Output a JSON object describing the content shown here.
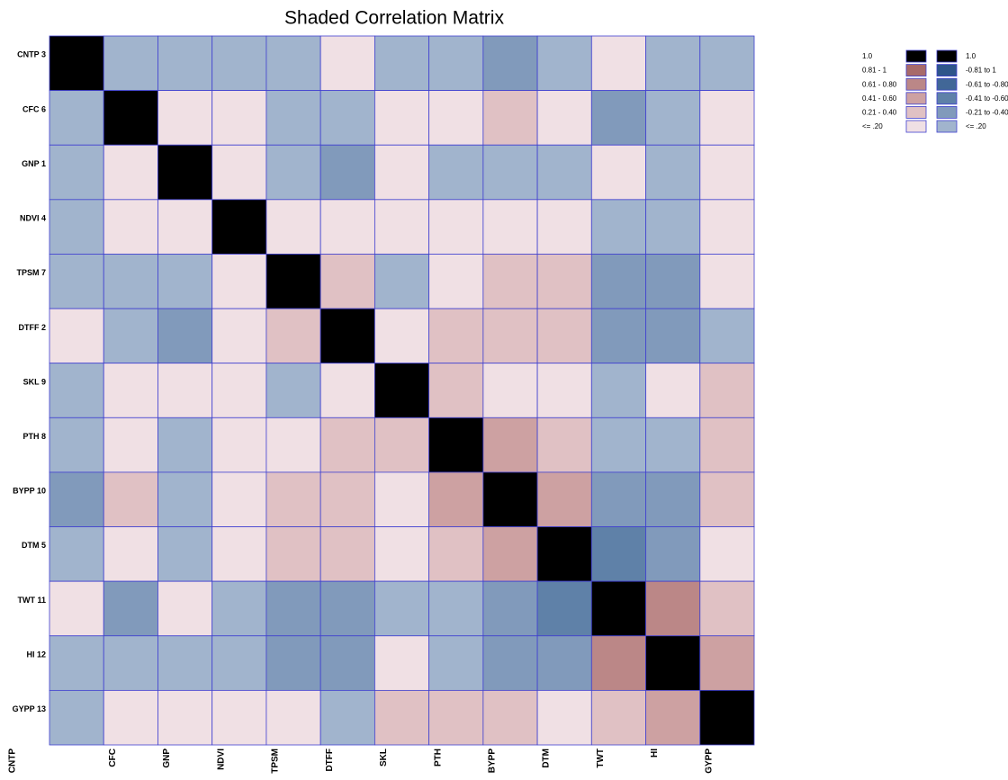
{
  "chart_data": {
    "type": "heatmap",
    "title": "Shaded Correlation Matrix",
    "rows": [
      "CNTP 3",
      "CFC 6",
      "GNP 1",
      "NDVI 4",
      "TPSM 7",
      "DTFF 2",
      "SKL 9",
      "PTH 8",
      "BYPP 10",
      "DTM 5",
      "TWT 11",
      "HI 12",
      "GYPP 13"
    ],
    "columns": [
      "CNTP",
      "CFC",
      "GNP",
      "NDVI",
      "TPSM",
      "DTFF",
      "SKL",
      "PTH",
      "BYPP",
      "DTM",
      "TWT",
      "HI",
      "GYPP"
    ],
    "matrix": [
      [
        1,
        -0.1,
        -0.1,
        -0.1,
        -0.1,
        0.1,
        -0.1,
        -0.1,
        -0.3,
        -0.1,
        0.1,
        -0.1,
        -0.1
      ],
      [
        -0.1,
        1,
        0.1,
        0.1,
        -0.1,
        -0.1,
        0.1,
        0.1,
        0.3,
        0.1,
        -0.3,
        -0.1,
        0.1
      ],
      [
        -0.1,
        0.1,
        1,
        0.1,
        -0.1,
        -0.3,
        0.1,
        -0.1,
        -0.1,
        -0.1,
        0.1,
        -0.1,
        0.1
      ],
      [
        -0.1,
        0.1,
        0.1,
        1,
        0.1,
        0.1,
        0.1,
        0.1,
        0.1,
        0.1,
        -0.1,
        -0.1,
        0.1
      ],
      [
        -0.1,
        -0.1,
        -0.1,
        0.1,
        1,
        0.3,
        -0.1,
        0.1,
        0.3,
        0.3,
        -0.3,
        -0.3,
        0.1
      ],
      [
        0.1,
        -0.1,
        -0.3,
        0.1,
        0.3,
        1,
        0.1,
        0.3,
        0.3,
        0.3,
        -0.3,
        -0.3,
        -0.1
      ],
      [
        -0.1,
        0.1,
        0.1,
        0.1,
        -0.1,
        0.1,
        1,
        0.3,
        0.1,
        0.1,
        -0.1,
        0.1,
        0.3
      ],
      [
        -0.1,
        0.1,
        -0.1,
        0.1,
        0.1,
        0.3,
        0.3,
        1,
        0.5,
        0.3,
        -0.1,
        -0.1,
        0.3
      ],
      [
        -0.3,
        0.3,
        -0.1,
        0.1,
        0.3,
        0.3,
        0.1,
        0.5,
        1,
        0.5,
        -0.3,
        -0.3,
        0.3
      ],
      [
        -0.1,
        0.1,
        -0.1,
        0.1,
        0.3,
        0.3,
        0.1,
        0.3,
        0.5,
        1,
        -0.5,
        -0.3,
        0.1
      ],
      [
        0.1,
        -0.3,
        0.1,
        -0.1,
        -0.3,
        -0.3,
        -0.1,
        -0.1,
        -0.3,
        -0.5,
        1,
        0.7,
        0.3
      ],
      [
        -0.1,
        -0.1,
        -0.1,
        -0.1,
        -0.3,
        -0.3,
        0.1,
        -0.1,
        -0.3,
        -0.3,
        0.7,
        1,
        0.5
      ],
      [
        -0.1,
        0.1,
        0.1,
        0.1,
        0.1,
        -0.1,
        0.3,
        0.3,
        0.3,
        0.1,
        0.3,
        0.5,
        1
      ]
    ],
    "legend": {
      "positive": [
        {
          "label": "1.0",
          "color": "#000000",
          "min": 1
        },
        {
          "label": "0.81 - 1",
          "color": "#a86a6a",
          "min": 0.81
        },
        {
          "label": "0.61 - 0.80",
          "color": "#bb8787",
          "min": 0.61
        },
        {
          "label": "0.41 - 0.60",
          "color": "#cda1a2",
          "min": 0.41
        },
        {
          "label": "0.21 - 0.40",
          "color": "#e0c1c4",
          "min": 0.21
        },
        {
          "label": "<= .20",
          "color": "#f0e0e4",
          "max": 0.2
        }
      ],
      "negative": [
        {
          "label": "1.0",
          "color": "#000000",
          "max": -1
        },
        {
          "label": "-0.81 to 1",
          "color": "#2e558a",
          "max": -0.81
        },
        {
          "label": "-0.61 to -0.80",
          "color": "#416797",
          "max": -0.61
        },
        {
          "label": "-0.41 to -0.60",
          "color": "#5f81a8",
          "max": -0.41
        },
        {
          "label": "-0.21 to -0.40",
          "color": "#819abb",
          "max": -0.21
        },
        {
          "label": "<= .20",
          "color": "#a1b4cd",
          "min": -0.2
        }
      ]
    }
  }
}
